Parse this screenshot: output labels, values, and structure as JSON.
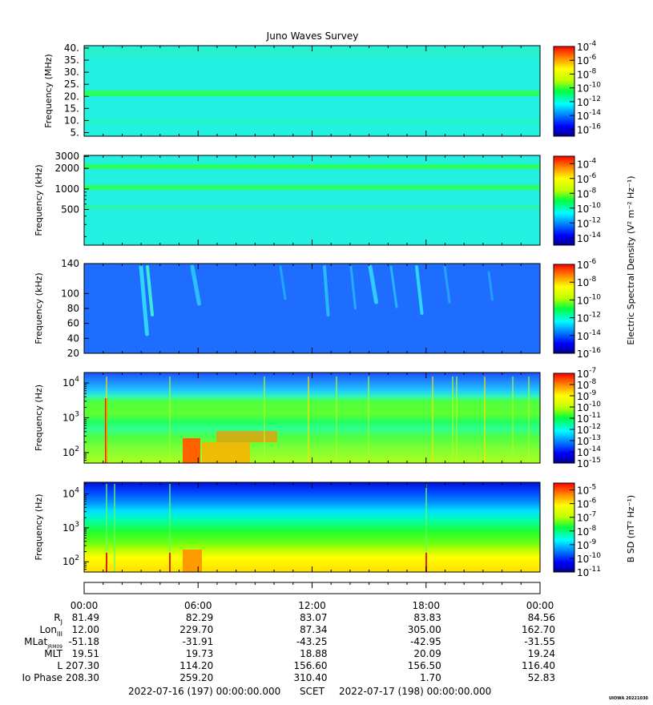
{
  "title": "Juno Waves Survey",
  "footer": {
    "left": "2022-07-16 (197) 00:00:00.000",
    "mid": "SCET",
    "right": "2022-07-17 (198) 00:00:00.000",
    "stamp": "UIOWA 20221030"
  },
  "colorbar_labels": {
    "electric": "Electric Spectral Density (V² m⁻² Hz⁻¹)",
    "magnetic": "B SD (nT² Hz⁻¹)"
  },
  "chart_data": [
    {
      "type": "heatmap",
      "ylabel": "Frequency (MHz)",
      "yscale": "linear",
      "ylim": [
        3.5,
        41
      ],
      "yticks": [
        5,
        10,
        15,
        20,
        25,
        30,
        35,
        40
      ],
      "ytick_labels": [
        "5.",
        "10.",
        "15.",
        "20.",
        "25.",
        "30.",
        "35.",
        "40."
      ],
      "colorbar": {
        "exponents": [
          -4,
          -6,
          -8,
          -10,
          -12,
          -14,
          -16
        ],
        "range": [
          -17,
          -4
        ]
      },
      "features": [
        "uniform background near 1e-12",
        "horizontal band near 21.5 MHz"
      ]
    },
    {
      "type": "heatmap",
      "ylabel": "Frequency (kHz)",
      "yscale": "log",
      "ylim": [
        150,
        3100
      ],
      "yticks": [
        500,
        1000,
        2000,
        3000
      ],
      "ytick_labels": [
        "500",
        "1000",
        "2000",
        "3000"
      ],
      "colorbar": {
        "exponents": [
          -4,
          -6,
          -8,
          -10,
          -12,
          -14
        ],
        "range": [
          -15,
          -3
        ]
      },
      "features": [
        "horizontal bands near 2000, 1000 and 500 kHz"
      ]
    },
    {
      "type": "heatmap",
      "ylabel": "Frequency (kHz)",
      "yscale": "linear",
      "ylim": [
        20,
        140
      ],
      "yticks": [
        20,
        40,
        60,
        80,
        100,
        140
      ],
      "ytick_labels": [
        "20",
        "40",
        "60",
        "80",
        "100",
        "140"
      ],
      "colorbar": {
        "exponents": [
          -6,
          -8,
          -10,
          -12,
          -14,
          -16
        ],
        "range": [
          -16,
          -6
        ]
      },
      "features": [
        "blue background near 1e-14 with sporadic emission streaks"
      ]
    },
    {
      "type": "heatmap",
      "ylabel": "Frequency (Hz)",
      "yscale": "log",
      "ylim": [
        50,
        20000
      ],
      "yticks": [
        100,
        1000,
        10000
      ],
      "ytick_labels": [
        "10^2",
        "10^3",
        "10^4"
      ],
      "colorbar": {
        "exponents": [
          -7,
          -8,
          -9,
          -10,
          -11,
          -12,
          -13,
          -14,
          -15
        ],
        "range": [
          -15,
          -7
        ]
      },
      "features": [
        "intense low-frequency emission before 10:00",
        "cutoff near 3e3 Hz"
      ]
    },
    {
      "type": "heatmap",
      "ylabel": "Frequency (Hz)",
      "yscale": "log",
      "ylim": [
        50,
        22000
      ],
      "yticks": [
        100,
        1000,
        10000
      ],
      "ytick_labels": [
        "10^2",
        "10^3",
        "10^4"
      ],
      "colorbar": {
        "exponents": [
          -5,
          -6,
          -7,
          -8,
          -9,
          -10,
          -11
        ],
        "range": [
          -11,
          -4.5
        ]
      },
      "features": [
        "spectral density decreasing with frequency"
      ]
    }
  ],
  "time_axis": {
    "ticks": [
      "00:00",
      "06:00",
      "12:00",
      "18:00",
      "00:00"
    ],
    "hours": [
      0,
      6,
      12,
      18,
      24
    ]
  },
  "ephemeris": [
    {
      "label": "R",
      "sub": "J",
      "values": [
        "81.49",
        "82.29",
        "83.07",
        "83.83",
        "84.56"
      ]
    },
    {
      "label": "Lon",
      "sub": "III",
      "values": [
        "12.00",
        "229.70",
        "87.34",
        "305.00",
        "162.70"
      ]
    },
    {
      "label": "MLat",
      "sub": "JRM09",
      "values": [
        "-51.18",
        "-31.91",
        "-43.25",
        "-42.95",
        "-31.55"
      ]
    },
    {
      "label": "MLT",
      "sub": "",
      "values": [
        "19.51",
        "19.73",
        "18.88",
        "20.09",
        "19.24"
      ]
    },
    {
      "label": "L",
      "sub": "",
      "values": [
        "207.30",
        "114.20",
        "156.60",
        "156.50",
        "116.40"
      ]
    },
    {
      "label": "Io Phase",
      "sub": "",
      "values": [
        "208.30",
        "259.20",
        "310.40",
        "1.70",
        "52.83"
      ]
    }
  ]
}
